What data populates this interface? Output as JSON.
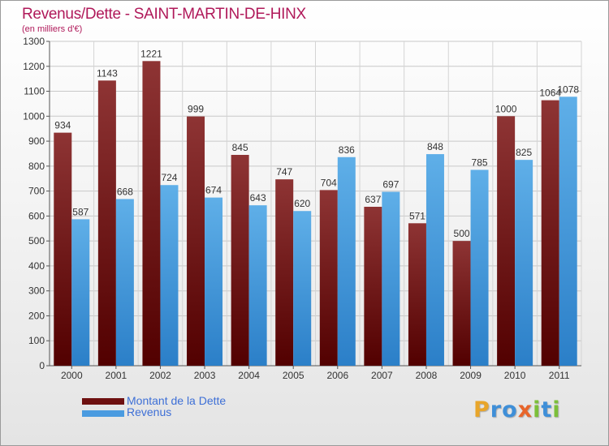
{
  "title": "Revenus/Dette - SAINT-MARTIN-DE-HINX",
  "subtitle": "(en milliers d'€)",
  "colors": {
    "title": "#b0195a",
    "dette_top": "#8e3434",
    "dette_bottom": "#520000",
    "revenus_top": "#5fafe8",
    "revenus_bottom": "#2b7fc8",
    "legend_text": "#3d6fd6"
  },
  "legend": {
    "items": [
      {
        "label": "Montant de la Dette",
        "color": "#6e1010"
      },
      {
        "label": "Revenus",
        "color": "#4a9be0"
      }
    ]
  },
  "logo": {
    "text": "Proxiti",
    "letters": [
      {
        "ch": "P",
        "color": "#e8a52a"
      },
      {
        "ch": "r",
        "color": "#3f8fd8"
      },
      {
        "ch": "o",
        "color": "#3f8fd8"
      },
      {
        "ch": "x",
        "color": "#e8652a"
      },
      {
        "ch": "i",
        "color": "#7cbf3a"
      },
      {
        "ch": "t",
        "color": "#3f8fd8"
      },
      {
        "ch": "i",
        "color": "#7cbf3a"
      }
    ]
  },
  "chart_data": {
    "type": "bar",
    "title": "Revenus/Dette - SAINT-MARTIN-DE-HINX",
    "subtitle": "(en milliers d'€)",
    "categories": [
      "2000",
      "2001",
      "2002",
      "2003",
      "2004",
      "2005",
      "2006",
      "2007",
      "2008",
      "2009",
      "2010",
      "2011"
    ],
    "series": [
      {
        "name": "Montant de la Dette",
        "values": [
          934,
          1143,
          1221,
          999,
          845,
          747,
          704,
          637,
          571,
          500,
          1000,
          1064
        ]
      },
      {
        "name": "Revenus",
        "values": [
          587,
          668,
          724,
          674,
          643,
          620,
          836,
          697,
          848,
          785,
          825,
          1078
        ]
      }
    ],
    "ylim": [
      0,
      1300
    ],
    "yticks": [
      0,
      100,
      200,
      300,
      400,
      500,
      600,
      700,
      800,
      900,
      1000,
      1100,
      1200,
      1300
    ],
    "grid": true,
    "legend_position": "bottom-left",
    "data_labels": true
  }
}
